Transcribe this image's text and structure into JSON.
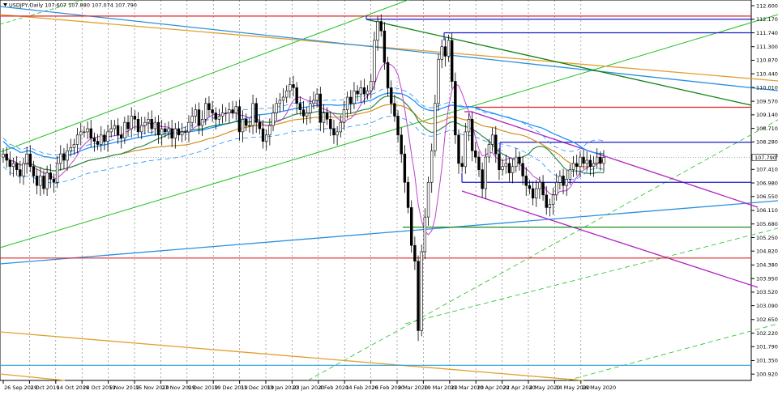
{
  "header": {
    "symbol_line": "USDJPY,Daily  107.607 107.880 107.074 107.790"
  },
  "chart_data": {
    "type": "candlestick",
    "symbol": "USDJPY",
    "timeframe": "Daily",
    "ohlc_header": {
      "open": 107.607,
      "high": 107.88,
      "low": 107.074,
      "close": 107.79
    },
    "ylim": [
      100.72,
      112.78
    ],
    "y_ticks": [
      112.6,
      112.17,
      111.74,
      111.3,
      110.87,
      110.44,
      110.01,
      109.57,
      109.14,
      108.71,
      108.28,
      107.85,
      107.41,
      106.98,
      106.55,
      106.11,
      105.68,
      105.25,
      104.82,
      104.38,
      103.95,
      103.52,
      103.09,
      102.65,
      102.22,
      101.79,
      101.35,
      100.92
    ],
    "x_tick_labels": [
      "26 Sep 2019",
      "2 Oct 2019",
      "14 Oct 2019",
      "24 Oct 2019",
      "5 Nov 2019",
      "15 Nov 2019",
      "27 Nov 2019",
      "9 Dec 2019",
      "19 Dec 2019",
      "31 Dec 2019",
      "13 Jan 2020",
      "23 Jan 2020",
      "4 Feb 2020",
      "14 Feb 2020",
      "26 Feb 2020",
      "9 Mar 2020",
      "19 Mar 2020",
      "31 Mar 2020",
      "10 Apr 2020",
      "22 Apr 2020",
      "4 May 2020",
      "14 May 2020",
      "26 May 2020"
    ],
    "current_price": 107.79,
    "grid": true,
    "colors": {
      "candle": "#000000",
      "horizontal_red": "#e02020",
      "horizontal_blue": "#1a1acc",
      "horizontal_green": "#1a8a1a",
      "horizontal_cyan": "#2aa0e0",
      "ma_magenta": "#c040d0",
      "ma_green": "#2a8a4a",
      "ma_orange": "#d09020",
      "ma_blue": "#1e90ff",
      "channel_green": "#20c020",
      "channel_dark_green": "#108010",
      "channel_purple": "#b020c0",
      "trend_orange": "#e0a030",
      "trend_blue": "#2a90e0"
    },
    "horizontal_levels": [
      {
        "price": 112.27,
        "color": "horizontal_red"
      },
      {
        "price": 112.17,
        "color": "horizontal_blue"
      },
      {
        "price": 111.74,
        "color": "horizontal_blue"
      },
      {
        "price": 109.38,
        "color": "horizontal_red"
      },
      {
        "price": 108.27,
        "color": "horizontal_blue"
      },
      {
        "price": 107.0,
        "color": "horizontal_blue"
      },
      {
        "price": 105.58,
        "color": "horizontal_green"
      },
      {
        "price": 104.6,
        "color": "horizontal_red"
      },
      {
        "price": 101.2,
        "color": "horizontal_cyan"
      }
    ],
    "closes": [
      107.9,
      107.7,
      107.5,
      107.6,
      107.4,
      107.2,
      107.6,
      107.9,
      107.5,
      107.2,
      106.9,
      107.2,
      106.8,
      107.3,
      107.1,
      107.0,
      107.6,
      107.9,
      107.7,
      108.0,
      108.1,
      108.2,
      108.5,
      108.6,
      108.6,
      108.7,
      108.4,
      108.3,
      108.2,
      108.5,
      108.3,
      108.6,
      108.7,
      108.8,
      108.5,
      108.4,
      108.9,
      108.7,
      109.1,
      109.0,
      108.6,
      108.8,
      108.9,
      109.0,
      108.7,
      108.9,
      108.5,
      108.7,
      108.6,
      108.7,
      108.4,
      108.7,
      108.5,
      108.6,
      108.6,
      108.9,
      109.1,
      109.3,
      108.8,
      109.0,
      109.5,
      109.3,
      109.2,
      109.0,
      109.1,
      109.2,
      109.2,
      109.3,
      109.2,
      109.4,
      108.6,
      109.0,
      108.8,
      108.8,
      109.5,
      108.9,
      108.7,
      108.3,
      108.5,
      108.8,
      109.2,
      109.5,
      109.6,
      109.7,
      109.9,
      110.1,
      110.0,
      109.5,
      109.3,
      109.1,
      109.2,
      109.5,
      109.6,
      109.8,
      108.9,
      109.2,
      109.0,
      108.7,
      108.5,
      108.6,
      108.9,
      109.3,
      109.7,
      109.5,
      109.9,
      109.8,
      110.0,
      109.8,
      109.9,
      110.2,
      111.5,
      112.1,
      111.8,
      110.8,
      110.0,
      109.5,
      109.1,
      108.5,
      107.9,
      107.0,
      106.2,
      105.0,
      104.5,
      102.3,
      104.8,
      105.9,
      107.0,
      108.0,
      109.5,
      110.9,
      111.3,
      111.0,
      111.5,
      110.2,
      108.5,
      107.6,
      107.5,
      108.6,
      109.0,
      108.0,
      107.8,
      107.4,
      106.8,
      107.8,
      108.2,
      108.5,
      107.9,
      107.4,
      107.5,
      107.6,
      107.3,
      107.5,
      107.8,
      107.6,
      107.2,
      106.9,
      106.8,
      106.5,
      106.8,
      107.0,
      106.6,
      106.2,
      106.3,
      106.6,
      107.0,
      107.2,
      106.9,
      107.1,
      107.4,
      107.6,
      107.5,
      107.8,
      107.6,
      107.7,
      107.5,
      107.6,
      107.8,
      107.6,
      107.79
    ]
  }
}
